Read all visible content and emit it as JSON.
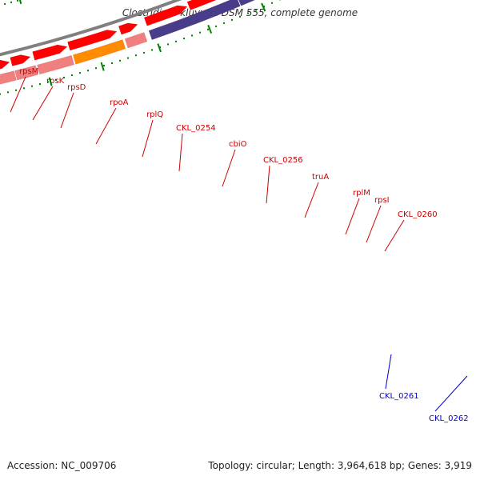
{
  "title": "Clostridium kluyveri DSM 555, complete genome",
  "footer": {
    "accession": "Accession: NC_009706",
    "summary": "Topology: circular; Length: 3,964,618 bp; Genes: 3,919"
  },
  "colors": {
    "cds": "#ff0000",
    "gene_light": "#f08080",
    "gene_orange": "#ff8c00",
    "gene_purple": "#483d8b",
    "gene_blue": "#0000ff",
    "gene_pink": "#ff1493",
    "backbone": "#808080",
    "tick": "#008000",
    "label_red": "#cc0000",
    "label_blue": "#0000cc"
  },
  "ticks": [
    "227 kbp",
    "228 kbp",
    "229 kbp",
    "230 kbp",
    "231 kbp",
    "232 kbp",
    "233 kbp",
    "234 kbp",
    "235 kbp"
  ],
  "labels": [
    {
      "text": "rpsM",
      "color": "red"
    },
    {
      "text": "rpsK",
      "color": "red"
    },
    {
      "text": "rpsD",
      "color": "red"
    },
    {
      "text": "rpoA",
      "color": "red"
    },
    {
      "text": "rplQ",
      "color": "red"
    },
    {
      "text": "CKL_0254",
      "color": "red"
    },
    {
      "text": "cbiO",
      "color": "red"
    },
    {
      "text": "CKL_0256",
      "color": "red"
    },
    {
      "text": "truA",
      "color": "red"
    },
    {
      "text": "rplM",
      "color": "red"
    },
    {
      "text": "rpsI",
      "color": "red"
    },
    {
      "text": "CKL_0260",
      "color": "red"
    },
    {
      "text": "CKL_0261",
      "color": "blue"
    },
    {
      "text": "CKL_0262",
      "color": "blue"
    }
  ]
}
